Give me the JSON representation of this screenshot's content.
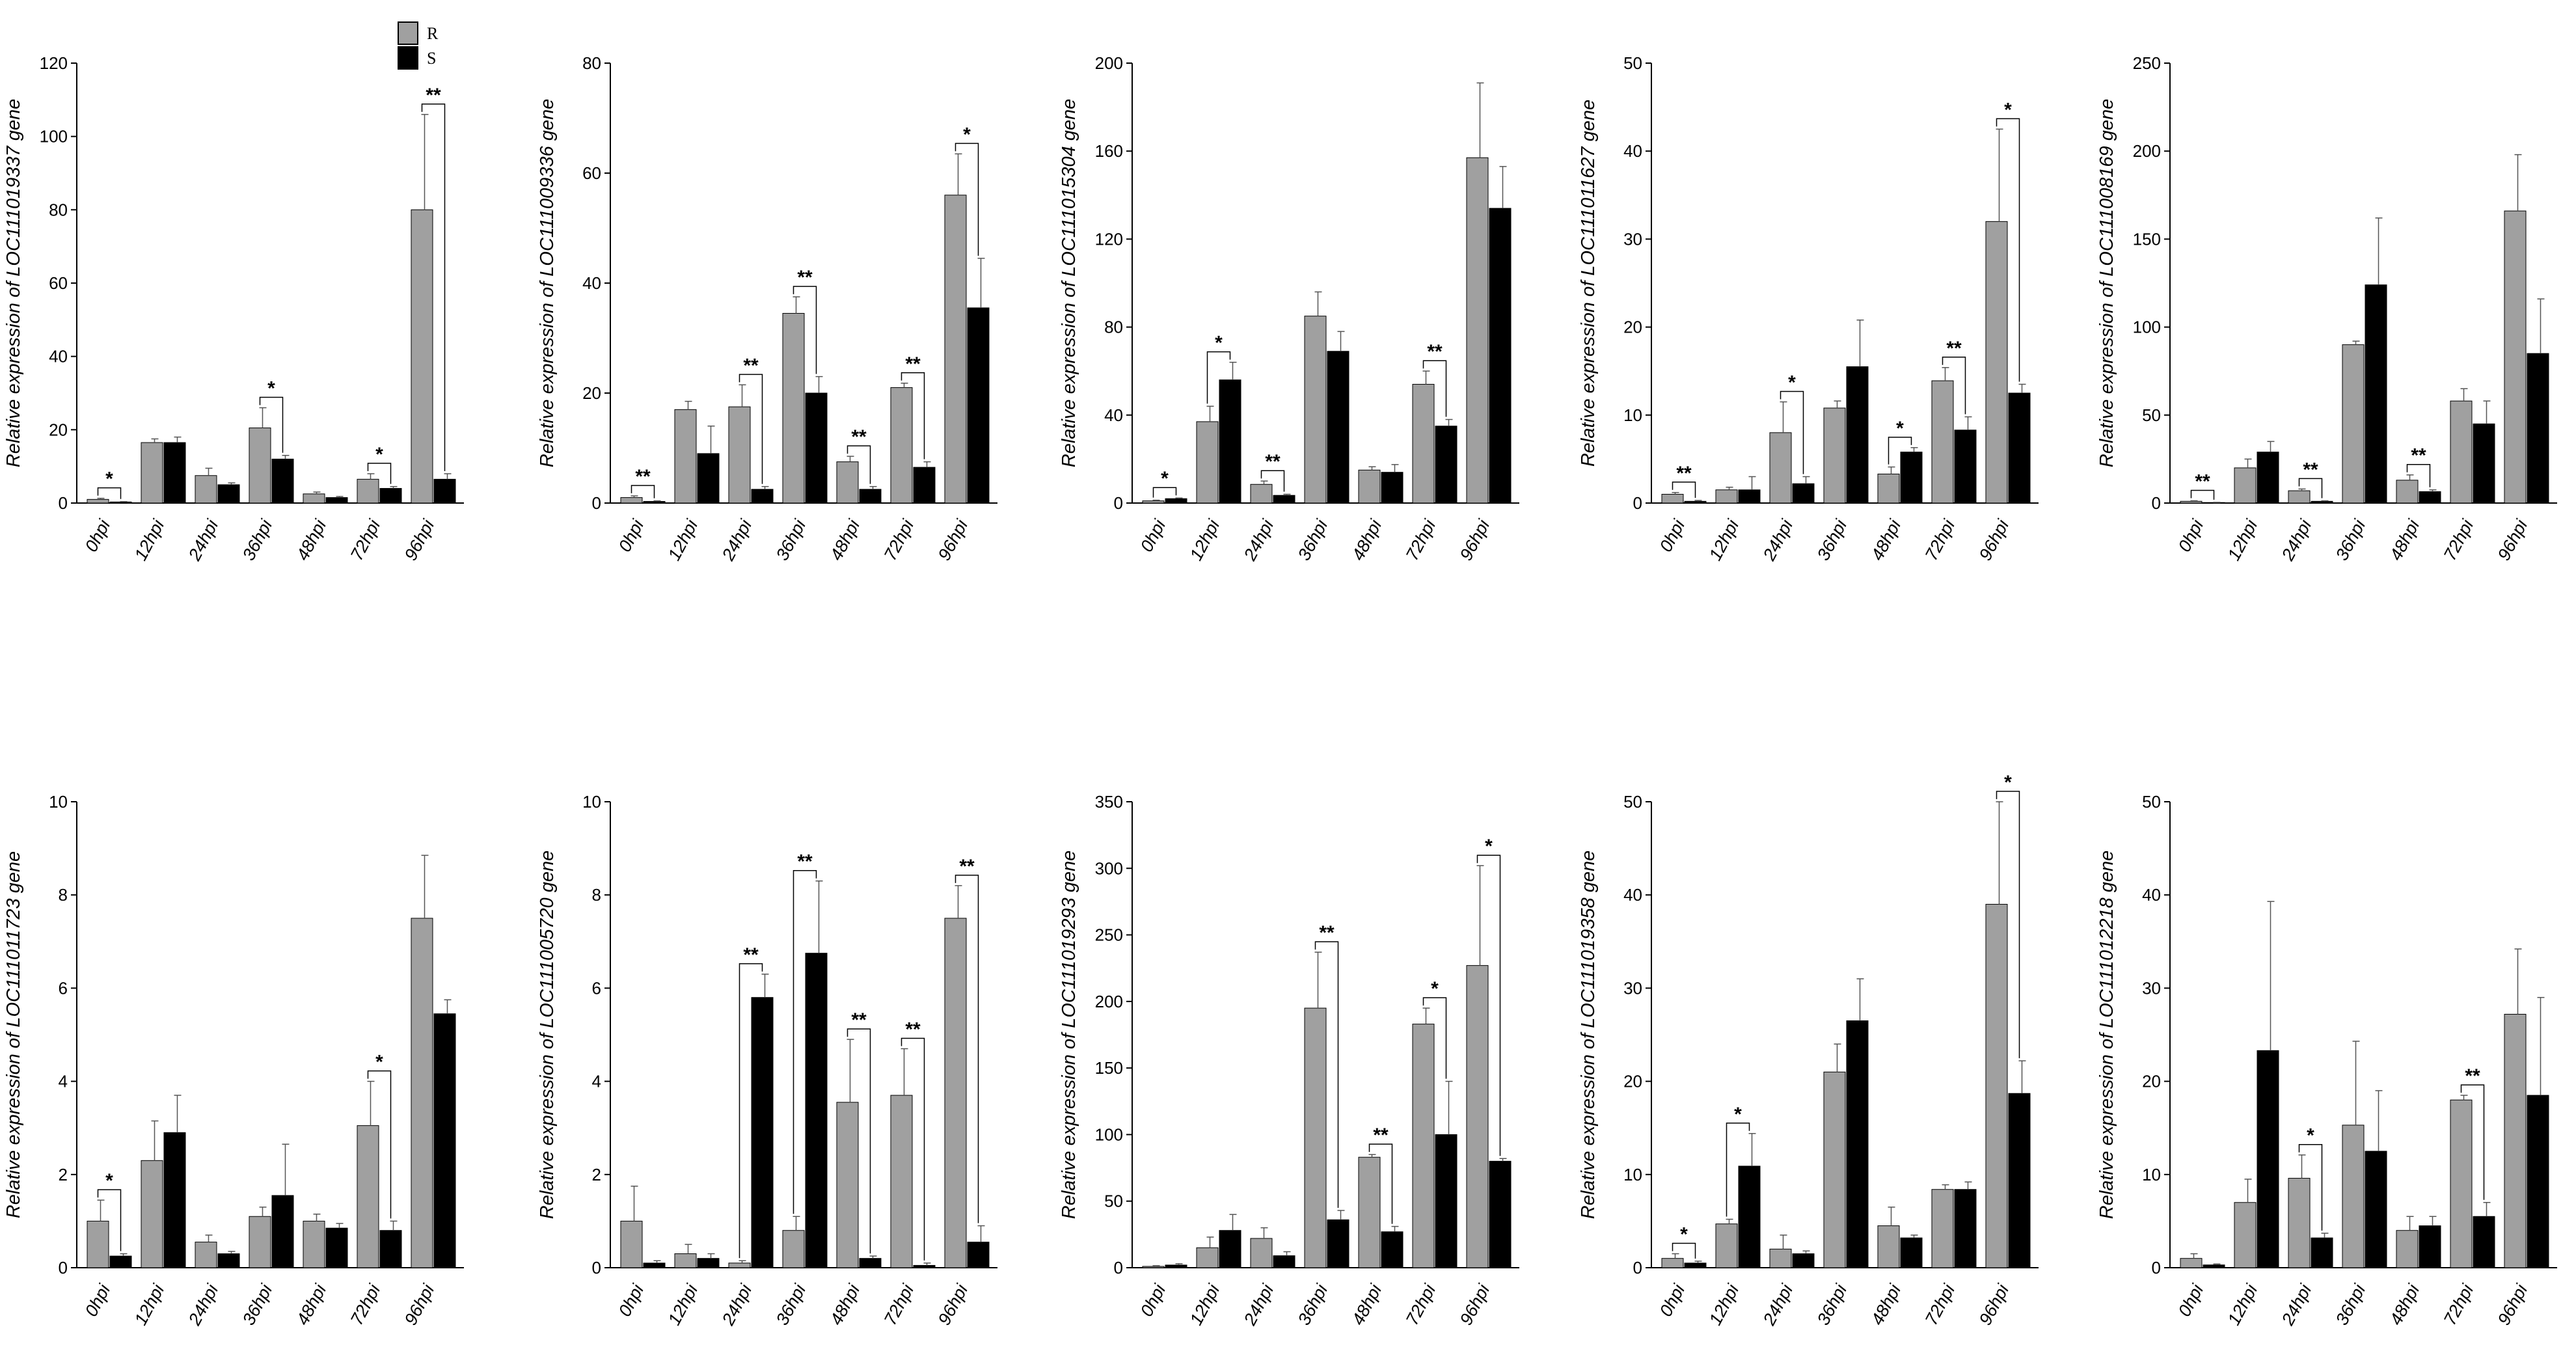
{
  "colors": {
    "R": "#a0a0a0",
    "S": "#000000"
  },
  "legend": [
    {
      "key": "R",
      "label": "R",
      "color": "#a0a0a0"
    },
    {
      "key": "S",
      "label": "S",
      "color": "#000000"
    }
  ],
  "chart_data": [
    {
      "type": "bar",
      "ylabel": "Relative expression of LOC111019337 gene",
      "categories": [
        "0hpi",
        "12hpi",
        "24hpi",
        "36hpi",
        "48hpi",
        "72hpi",
        "96hpi"
      ],
      "ylim": [
        0,
        120
      ],
      "yticks": [
        0,
        20,
        40,
        60,
        80,
        100,
        120
      ],
      "series": [
        {
          "name": "R",
          "values": [
            1,
            16.5,
            7.5,
            20.5,
            2.5,
            6.5,
            80
          ],
          "errors": [
            0.3,
            1,
            2,
            5.5,
            0.5,
            1.5,
            26
          ]
        },
        {
          "name": "S",
          "values": [
            0.3,
            16.5,
            5,
            12,
            1.5,
            4,
            6.5
          ],
          "errors": [
            0.1,
            1.5,
            0.5,
            1,
            0.3,
            0.5,
            1.5
          ]
        }
      ],
      "significance": [
        "*",
        "",
        "",
        "*",
        "",
        "*",
        "**"
      ]
    },
    {
      "type": "bar",
      "ylabel": "Relative expression of LOC111009336 gene",
      "categories": [
        "0hpi",
        "12hpi",
        "24hpi",
        "36hpi",
        "48hpi",
        "72hpi",
        "96hpi"
      ],
      "ylim": [
        0,
        80
      ],
      "yticks": [
        0,
        20,
        40,
        60,
        80
      ],
      "series": [
        {
          "name": "R",
          "values": [
            1,
            17,
            17.5,
            34.5,
            7.5,
            21,
            56
          ],
          "errors": [
            0.3,
            1.5,
            4,
            3,
            1,
            0.8,
            7.5
          ]
        },
        {
          "name": "S",
          "values": [
            0.3,
            9,
            2.5,
            20,
            2.5,
            6.5,
            35.5
          ],
          "errors": [
            0.1,
            5,
            0.5,
            3,
            0.5,
            1,
            9
          ]
        }
      ],
      "significance": [
        "**",
        "",
        "**",
        "**",
        "**",
        "**",
        "*"
      ]
    },
    {
      "type": "bar",
      "ylabel": "Relative expression of LOC111015304 gene",
      "categories": [
        "0hpi",
        "12hpi",
        "24hpi",
        "36hpi",
        "48hpi",
        "72hpi",
        "96hpi"
      ],
      "ylim": [
        0,
        200
      ],
      "yticks": [
        0,
        40,
        80,
        120,
        160,
        200
      ],
      "series": [
        {
          "name": "R",
          "values": [
            1,
            37,
            8.5,
            85,
            15,
            54,
            157
          ],
          "errors": [
            0.3,
            7,
            1.5,
            11,
            1.5,
            6,
            34
          ]
        },
        {
          "name": "S",
          "values": [
            2,
            56,
            3.5,
            69,
            14,
            35,
            134
          ],
          "errors": [
            0.3,
            8,
            0.5,
            9,
            3.5,
            3,
            19
          ]
        }
      ],
      "significance": [
        "*",
        "*",
        "**",
        "",
        "",
        "**",
        ""
      ]
    },
    {
      "type": "bar",
      "ylabel": "Relative expression of LOC111011627 gene",
      "categories": [
        "0hpi",
        "12hpi",
        "24hpi",
        "36hpi",
        "48hpi",
        "72hpi",
        "96hpi"
      ],
      "ylim": [
        0,
        50
      ],
      "yticks": [
        0,
        10,
        20,
        30,
        40,
        50
      ],
      "series": [
        {
          "name": "R",
          "values": [
            1,
            1.5,
            8,
            10.8,
            3.3,
            13.9,
            32
          ],
          "errors": [
            0.2,
            0.3,
            3.5,
            0.8,
            0.8,
            1.5,
            10.5
          ]
        },
        {
          "name": "S",
          "values": [
            0.2,
            1.5,
            2.2,
            15.5,
            5.8,
            8.3,
            12.5
          ],
          "errors": [
            0.1,
            1.5,
            0.8,
            5.3,
            0.5,
            1.5,
            1
          ]
        }
      ],
      "significance": [
        "**",
        "",
        "*",
        "",
        "*",
        "**",
        "*"
      ]
    },
    {
      "type": "bar",
      "ylabel": "Relative expression of LOC111008169 gene",
      "categories": [
        "0hpi",
        "12hpi",
        "24hpi",
        "36hpi",
        "48hpi",
        "72hpi",
        "96hpi"
      ],
      "ylim": [
        0,
        250
      ],
      "yticks": [
        0,
        50,
        100,
        150,
        200,
        250
      ],
      "series": [
        {
          "name": "R",
          "values": [
            1,
            20,
            7,
            90,
            13,
            58,
            166
          ],
          "errors": [
            0.3,
            5,
            1,
            2,
            3,
            7,
            32
          ]
        },
        {
          "name": "S",
          "values": [
            0.3,
            29,
            1,
            124,
            6.5,
            45,
            85
          ],
          "errors": [
            0.1,
            6,
            0.3,
            38,
            1,
            13,
            31
          ]
        }
      ],
      "significance": [
        "**",
        "",
        "**",
        "",
        "**",
        "",
        ""
      ]
    },
    {
      "type": "bar",
      "ylabel": "Relative expression of LOC111011723 gene",
      "categories": [
        "0hpi",
        "12hpi",
        "24hpi",
        "36hpi",
        "48hpi",
        "72hpi",
        "96hpi"
      ],
      "ylim": [
        0,
        10
      ],
      "yticks": [
        0,
        2,
        4,
        6,
        8,
        10
      ],
      "series": [
        {
          "name": "R",
          "values": [
            1,
            2.3,
            0.55,
            1.1,
            1,
            3.05,
            7.5
          ],
          "errors": [
            0.45,
            0.85,
            0.15,
            0.2,
            0.15,
            0.95,
            1.35
          ]
        },
        {
          "name": "S",
          "values": [
            0.25,
            2.9,
            0.3,
            1.55,
            0.85,
            0.8,
            5.45
          ],
          "errors": [
            0.05,
            0.8,
            0.05,
            1.1,
            0.1,
            0.2,
            0.3
          ]
        }
      ],
      "significance": [
        "*",
        "",
        "",
        "",
        "",
        "*",
        ""
      ]
    },
    {
      "type": "bar",
      "ylabel": "Relative expression of LOC111005720 gene",
      "categories": [
        "0hpi",
        "12hpi",
        "24hpi",
        "36hpi",
        "48hpi",
        "72hpi",
        "96hpi"
      ],
      "ylim": [
        0,
        10
      ],
      "yticks": [
        0,
        2,
        4,
        6,
        8,
        10
      ],
      "series": [
        {
          "name": "R",
          "values": [
            1,
            0.3,
            0.1,
            0.8,
            3.55,
            3.7,
            7.5
          ],
          "errors": [
            0.75,
            0.2,
            0.05,
            0.3,
            1.35,
            1,
            0.7
          ]
        },
        {
          "name": "S",
          "values": [
            0.1,
            0.2,
            5.8,
            6.75,
            0.2,
            0.05,
            0.55
          ],
          "errors": [
            0.05,
            0.1,
            0.5,
            1.55,
            0.05,
            0.05,
            0.35
          ]
        }
      ],
      "significance": [
        "",
        "",
        "**",
        "**",
        "**",
        "**",
        "**"
      ]
    },
    {
      "type": "bar",
      "ylabel": "Relative expression of LOC111019293 gene",
      "categories": [
        "0hpi",
        "12hpi",
        "24hpi",
        "36hpi",
        "48hpi",
        "72hpi",
        "96hpi"
      ],
      "ylim": [
        0,
        350
      ],
      "yticks": [
        0,
        50,
        100,
        150,
        200,
        250,
        300,
        350
      ],
      "series": [
        {
          "name": "R",
          "values": [
            1,
            15,
            22,
            195,
            83,
            183,
            227
          ],
          "errors": [
            0.5,
            8,
            8,
            42,
            2,
            12,
            75
          ]
        },
        {
          "name": "S",
          "values": [
            2,
            28,
            9,
            36,
            27,
            100,
            80
          ],
          "errors": [
            1,
            12,
            3,
            7,
            4,
            40,
            2
          ]
        }
      ],
      "significance": [
        "",
        "",
        "",
        "**",
        "**",
        "*",
        "*"
      ]
    },
    {
      "type": "bar",
      "ylabel": "Relative expression of LOC111019358 gene",
      "categories": [
        "0hpi",
        "12hpi",
        "24hpi",
        "36hpi",
        "48hpi",
        "72hpi",
        "96hpi"
      ],
      "ylim": [
        0,
        50
      ],
      "yticks": [
        0,
        10,
        20,
        30,
        40,
        50
      ],
      "series": [
        {
          "name": "R",
          "values": [
            1,
            4.7,
            2,
            21,
            4.5,
            8.4,
            39
          ],
          "errors": [
            0.5,
            0.5,
            1.5,
            3,
            2,
            0.5,
            11
          ]
        },
        {
          "name": "S",
          "values": [
            0.5,
            10.9,
            1.5,
            26.5,
            3.2,
            8.4,
            18.7
          ],
          "errors": [
            0.2,
            3.5,
            0.3,
            4.5,
            0.3,
            0.8,
            3.5
          ]
        }
      ],
      "significance": [
        "*",
        "*",
        "",
        "",
        "",
        "",
        "*"
      ]
    },
    {
      "type": "bar",
      "ylabel": "Relative expression of LOC111012218 gene",
      "categories": [
        "0hpi",
        "12hpi",
        "24hpi",
        "36hpi",
        "48hpi",
        "72hpi",
        "96hpi"
      ],
      "ylim": [
        0,
        50
      ],
      "yticks": [
        0,
        10,
        20,
        30,
        40,
        50
      ],
      "series": [
        {
          "name": "R",
          "values": [
            1,
            7,
            9.6,
            15.3,
            4,
            18,
            27.2
          ],
          "errors": [
            0.5,
            2.5,
            2.5,
            9,
            1.5,
            0.5,
            7
          ]
        },
        {
          "name": "S",
          "values": [
            0.3,
            23.3,
            3.2,
            12.5,
            4.5,
            5.5,
            18.5
          ],
          "errors": [
            0.1,
            16,
            0.5,
            6.5,
            1,
            1.5,
            10.5
          ]
        }
      ],
      "significance": [
        "",
        "",
        "*",
        "",
        "",
        "**",
        ""
      ]
    }
  ]
}
